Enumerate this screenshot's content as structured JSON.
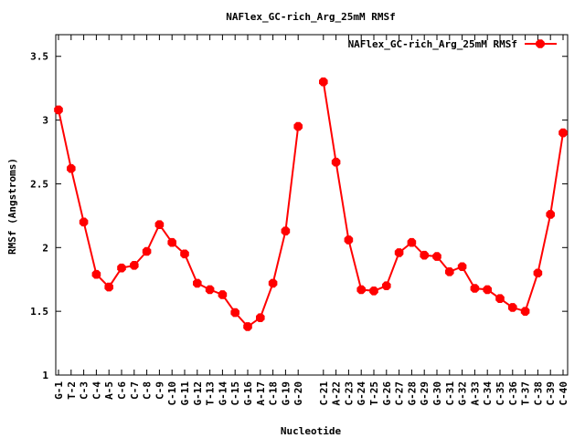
{
  "chart_data": {
    "type": "line",
    "title": "NAFlex_GC-rich_Arg_25mM RMSf",
    "xlabel": "Nucleotide",
    "ylabel": "RMSf (Angstroms)",
    "ylim": [
      1,
      3.67
    ],
    "yticks": [
      "1",
      "1.5",
      "2",
      "2.5",
      "3",
      "3.5"
    ],
    "ytick_values": [
      1,
      1.5,
      2,
      2.5,
      3,
      3.5
    ],
    "grid": false,
    "legend_position": "top-right",
    "series": [
      {
        "name": "NAFlex_GC-rich_Arg_25mM RMSf",
        "color": "#ff0000",
        "segments": [
          {
            "categories": [
              "G-1",
              "T-2",
              "C-3",
              "C-4",
              "A-5",
              "C-6",
              "C-7",
              "C-8",
              "C-9",
              "C-10",
              "G-11",
              "G-12",
              "T-13",
              "G-14",
              "C-15",
              "G-16",
              "A-17",
              "C-18",
              "G-19",
              "G-20"
            ],
            "values": [
              3.08,
              2.62,
              2.2,
              1.79,
              1.69,
              1.84,
              1.86,
              1.97,
              2.18,
              2.04,
              1.95,
              1.72,
              1.67,
              1.63,
              1.49,
              1.38,
              1.45,
              1.72,
              2.13,
              2.95
            ]
          },
          {
            "categories": [
              "C-21",
              "A-22",
              "C-23",
              "G-24",
              "T-25",
              "G-26",
              "C-27",
              "G-28",
              "G-29",
              "G-30",
              "C-31",
              "G-32",
              "A-33",
              "C-34",
              "C-35",
              "C-36",
              "T-37",
              "C-38",
              "C-39",
              "C-40"
            ],
            "values": [
              3.3,
              2.67,
              2.06,
              1.67,
              1.66,
              1.7,
              1.96,
              2.04,
              1.94,
              1.93,
              1.81,
              1.85,
              1.68,
              1.67,
              1.6,
              1.53,
              1.5,
              1.8,
              2.26,
              2.9
            ]
          }
        ]
      }
    ]
  }
}
